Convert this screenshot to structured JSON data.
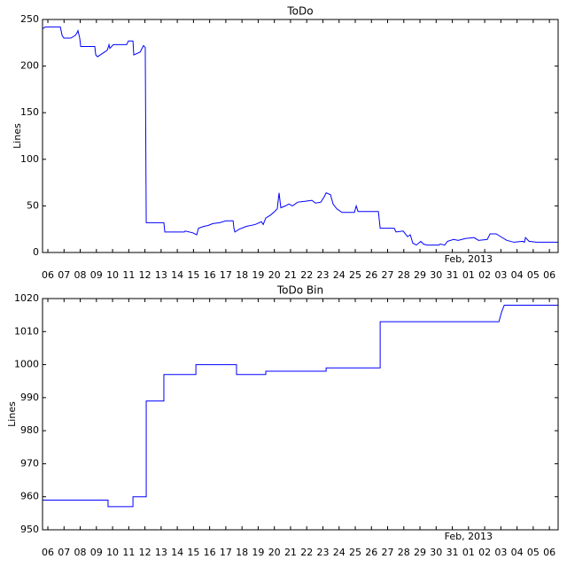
{
  "chart_data": [
    {
      "type": "line",
      "title": "ToDo",
      "ylabel": "Lines",
      "x_offset_text": "Feb, 2013",
      "color": "#0000ff",
      "x": [
        -0.33,
        -0.16,
        0.77,
        0.88,
        0.99,
        1.42,
        1.7,
        1.81,
        1.86,
        1.97,
        2.03,
        2.9,
        2.96,
        3.07,
        3.5,
        3.67,
        3.78,
        3.83,
        4.05,
        4.87,
        4.98,
        5.26,
        5.31,
        5.7,
        5.91,
        6.02,
        6.08,
        7.17,
        7.23,
        8.43,
        8.49,
        8.98,
        9.2,
        9.31,
        9.64,
        9.91,
        10.19,
        10.62,
        11.01,
        11.45,
        11.5,
        11.56,
        11.83,
        12.27,
        12.81,
        13.2,
        13.31,
        13.47,
        13.75,
        14.02,
        14.18,
        14.29,
        14.4,
        14.68,
        14.9,
        15.12,
        15.44,
        15.94,
        16.32,
        16.54,
        16.87,
        17.09,
        17.2,
        17.47,
        17.63,
        17.85,
        18.18,
        18.95,
        19.06,
        19.17,
        20.43,
        20.54,
        21.41,
        21.52,
        21.96,
        22.23,
        22.4,
        22.56,
        22.78,
        23.05,
        23.22,
        23.44,
        24.15,
        24.26,
        24.53,
        24.7,
        25.08,
        25.36,
        25.79,
        26.34,
        26.62,
        27.16,
        27.33,
        27.71,
        27.99,
        28.37,
        28.81,
        29.35,
        29.46,
        29.52,
        29.74,
        30.18,
        31.54
      ],
      "values": [
        240,
        242,
        242,
        233,
        230,
        230,
        233,
        236,
        238,
        230,
        221,
        221,
        212,
        210,
        215,
        217,
        223,
        219,
        223,
        223,
        227,
        227,
        212,
        215,
        222,
        220,
        32,
        32,
        22,
        22,
        23,
        21,
        19,
        26,
        28,
        29,
        31,
        32,
        34,
        34,
        26,
        22,
        25,
        28,
        30,
        33,
        30,
        37,
        40,
        44,
        47,
        64,
        48,
        50,
        52,
        50,
        54,
        55,
        56,
        53,
        54,
        60,
        64,
        62,
        52,
        47,
        43,
        43,
        50,
        44,
        44,
        26,
        26,
        22,
        23,
        17,
        19,
        10,
        8,
        12,
        9,
        8,
        8,
        9,
        8,
        12,
        14,
        13,
        15,
        16,
        13,
        14,
        20,
        20,
        17,
        13,
        11,
        12,
        11,
        16,
        12,
        11,
        11
      ],
      "xlim": [
        -0.33,
        31.54
      ],
      "ylim": [
        0,
        250
      ],
      "yticks": [
        0,
        50,
        100,
        150,
        200,
        250
      ],
      "xticks": [
        {
          "value": 0,
          "label": "06"
        },
        {
          "value": 1,
          "label": "07"
        },
        {
          "value": 2,
          "label": "08"
        },
        {
          "value": 3,
          "label": "09"
        },
        {
          "value": 4,
          "label": "10"
        },
        {
          "value": 5,
          "label": "11"
        },
        {
          "value": 6,
          "label": "12"
        },
        {
          "value": 7,
          "label": "13"
        },
        {
          "value": 8,
          "label": "14"
        },
        {
          "value": 9,
          "label": "15"
        },
        {
          "value": 10,
          "label": "16"
        },
        {
          "value": 11,
          "label": "17"
        },
        {
          "value": 12,
          "label": "18"
        },
        {
          "value": 13,
          "label": "19"
        },
        {
          "value": 14,
          "label": "20"
        },
        {
          "value": 15,
          "label": "21"
        },
        {
          "value": 16,
          "label": "22"
        },
        {
          "value": 17,
          "label": "23"
        },
        {
          "value": 18,
          "label": "24"
        },
        {
          "value": 19,
          "label": "25"
        },
        {
          "value": 20,
          "label": "26"
        },
        {
          "value": 21,
          "label": "27"
        },
        {
          "value": 22,
          "label": "28"
        },
        {
          "value": 23,
          "label": "29"
        },
        {
          "value": 24,
          "label": "30"
        },
        {
          "value": 25,
          "label": "31"
        },
        {
          "value": 26,
          "label": "01"
        },
        {
          "value": 27,
          "label": "02"
        },
        {
          "value": 28,
          "label": "03"
        },
        {
          "value": 29,
          "label": "04"
        },
        {
          "value": 30,
          "label": "05"
        },
        {
          "value": 31,
          "label": "06"
        }
      ]
    },
    {
      "type": "line",
      "title": "ToDo Bin",
      "ylabel": "Lines",
      "x_offset_text": "Feb, 2013",
      "color": "#0000ff",
      "x": [
        -0.33,
        3.72,
        3.72,
        5.26,
        5.26,
        6.08,
        6.08,
        7.17,
        7.17,
        9.15,
        9.15,
        11.66,
        11.66,
        13.47,
        13.47,
        17.2,
        17.2,
        20.54,
        20.54,
        27.88,
        28.05,
        28.21,
        31.54
      ],
      "values": [
        959,
        959,
        957,
        957,
        960,
        960,
        989,
        989,
        997,
        997,
        1000,
        1000,
        997,
        997,
        998,
        998,
        999,
        999,
        1013,
        1013,
        1016,
        1018,
        1018
      ],
      "xlim": [
        -0.33,
        31.54
      ],
      "ylim": [
        950,
        1020
      ],
      "yticks": [
        950,
        960,
        970,
        980,
        990,
        1000,
        1010,
        1020
      ],
      "xticks": [
        {
          "value": 0,
          "label": "06"
        },
        {
          "value": 1,
          "label": "07"
        },
        {
          "value": 2,
          "label": "08"
        },
        {
          "value": 3,
          "label": "09"
        },
        {
          "value": 4,
          "label": "10"
        },
        {
          "value": 5,
          "label": "11"
        },
        {
          "value": 6,
          "label": "12"
        },
        {
          "value": 7,
          "label": "13"
        },
        {
          "value": 8,
          "label": "14"
        },
        {
          "value": 9,
          "label": "15"
        },
        {
          "value": 10,
          "label": "16"
        },
        {
          "value": 11,
          "label": "17"
        },
        {
          "value": 12,
          "label": "18"
        },
        {
          "value": 13,
          "label": "19"
        },
        {
          "value": 14,
          "label": "20"
        },
        {
          "value": 15,
          "label": "21"
        },
        {
          "value": 16,
          "label": "22"
        },
        {
          "value": 17,
          "label": "23"
        },
        {
          "value": 18,
          "label": "24"
        },
        {
          "value": 19,
          "label": "25"
        },
        {
          "value": 20,
          "label": "26"
        },
        {
          "value": 21,
          "label": "27"
        },
        {
          "value": 22,
          "label": "28"
        },
        {
          "value": 23,
          "label": "29"
        },
        {
          "value": 24,
          "label": "30"
        },
        {
          "value": 25,
          "label": "31"
        },
        {
          "value": 26,
          "label": "01"
        },
        {
          "value": 27,
          "label": "02"
        },
        {
          "value": 28,
          "label": "03"
        },
        {
          "value": 29,
          "label": "04"
        },
        {
          "value": 30,
          "label": "05"
        },
        {
          "value": 31,
          "label": "06"
        }
      ]
    }
  ]
}
